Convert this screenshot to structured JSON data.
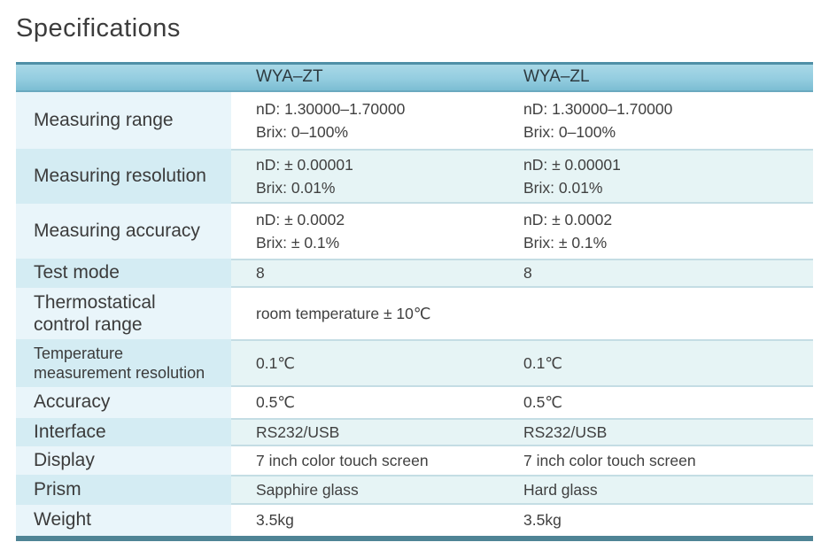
{
  "title": "Specifications",
  "header": {
    "label": "",
    "model_a": "WYA–ZT",
    "model_b": "WYA–ZL"
  },
  "rows": [
    {
      "label": "Measuring range",
      "a": [
        "nD: 1.30000–1.70000",
        "Brix: 0–100%"
      ],
      "b": [
        "nD: 1.30000–1.70000",
        "Brix: 0–100%"
      ]
    },
    {
      "label": "Measuring resolution",
      "a": [
        "nD:  ± 0.00001",
        "Brix: 0.01%"
      ],
      "b": [
        "nD:  ± 0.00001",
        "Brix: 0.01%"
      ]
    },
    {
      "label": "Measuring accuracy",
      "a": [
        "nD:  ± 0.0002",
        "Brix:  ± 0.1%"
      ],
      "b": [
        "nD:  ± 0.0002",
        "Brix:  ± 0.1%"
      ]
    },
    {
      "label": "Test mode",
      "a": [
        "8"
      ],
      "b": [
        "8"
      ]
    },
    {
      "label": [
        "Thermostatical",
        "control range"
      ],
      "a": [
        "room temperature  ±  10℃"
      ],
      "b": [
        ""
      ]
    },
    {
      "label": [
        "Temperature",
        "measurement resolution"
      ],
      "a": [
        "0.1℃"
      ],
      "b": [
        "0.1℃"
      ]
    },
    {
      "label": "Accuracy",
      "a": [
        "0.5℃"
      ],
      "b": [
        "0.5℃"
      ]
    },
    {
      "label": "Interface",
      "a": [
        "RS232/USB"
      ],
      "b": [
        "RS232/USB"
      ]
    },
    {
      "label": "Display",
      "a": [
        "7 inch color touch screen"
      ],
      "b": [
        "7 inch color touch screen"
      ]
    },
    {
      "label": "Prism",
      "a": [
        "Sapphire glass"
      ],
      "b": [
        "Hard glass"
      ]
    },
    {
      "label": "Weight",
      "a": [
        "3.5kg"
      ],
      "b": [
        "3.5kg"
      ]
    }
  ],
  "colors": {
    "header_band": "#94cde0",
    "row_shade": "#e6f4f5",
    "label_column": "#e4f2f8",
    "bottom_bar": "#4f8495"
  }
}
